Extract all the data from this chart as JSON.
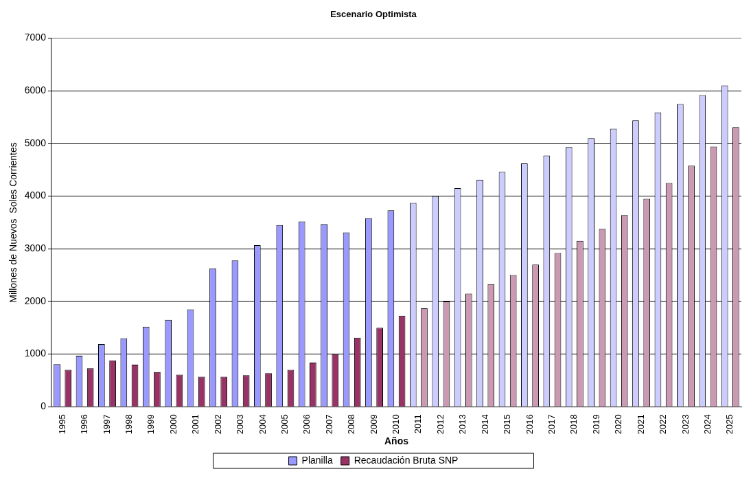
{
  "chart_data": {
    "type": "bar",
    "title": "Escenario Optimista",
    "xlabel": "Años",
    "ylabel": "Millones de Nuevos  Soles Corrientes",
    "categories": [
      "1995",
      "1996",
      "1997",
      "1998",
      "1999",
      "2000",
      "2001",
      "2002",
      "2003",
      "2004",
      "2005",
      "2006",
      "2007",
      "2008",
      "2009",
      "2010",
      "2011",
      "2012",
      "2013",
      "2014",
      "2015",
      "2016",
      "2017",
      "2018",
      "2019",
      "2020",
      "2021",
      "2022",
      "2023",
      "2024",
      "2025"
    ],
    "series": [
      {
        "name": "Planilla",
        "color": "#9999ff",
        "colors": [
          "#9999ff",
          "#9999ff",
          "#9999ff",
          "#9999ff",
          "#9999ff",
          "#9999ff",
          "#9999ff",
          "#9999ff",
          "#9999ff",
          "#9999ff",
          "#9999ff",
          "#9999ff",
          "#9999ff",
          "#9999ff",
          "#9999ff",
          "#9999ff",
          "#ccccff",
          "#ccccff",
          "#ccccff",
          "#ccccff",
          "#ccccff",
          "#ccccff",
          "#ccccff",
          "#ccccff",
          "#ccccff",
          "#ccccff",
          "#ccccff",
          "#ccccff",
          "#ccccff",
          "#ccccff",
          "#ccccff"
        ],
        "values": [
          810,
          970,
          1190,
          1300,
          1520,
          1650,
          1850,
          2630,
          2780,
          3070,
          3450,
          3520,
          3470,
          3310,
          3580,
          3730,
          3870,
          4000,
          4150,
          4310,
          4460,
          4620,
          4770,
          4930,
          5100,
          5280,
          5440,
          5590,
          5750,
          5920,
          6100
        ]
      },
      {
        "name": "Recaudación Bruta SNP",
        "color": "#993366",
        "colors": [
          "#993366",
          "#993366",
          "#993366",
          "#993366",
          "#993366",
          "#993366",
          "#993366",
          "#993366",
          "#993366",
          "#993366",
          "#993366",
          "#993366",
          "#993366",
          "#993366",
          "#993366",
          "#993366",
          "#cc99b3",
          "#cc99b3",
          "#cc99b3",
          "#cc99b3",
          "#cc99b3",
          "#cc99b3",
          "#cc99b3",
          "#cc99b3",
          "#cc99b3",
          "#cc99b3",
          "#cc99b3",
          "#cc99b3",
          "#cc99b3",
          "#cc99b3",
          "#cc99b3"
        ],
        "values": [
          700,
          730,
          880,
          800,
          660,
          610,
          570,
          570,
          600,
          640,
          700,
          840,
          1000,
          1310,
          1500,
          1730,
          1870,
          2000,
          2150,
          2330,
          2500,
          2700,
          2920,
          3150,
          3380,
          3640,
          3950,
          4250,
          4580,
          4940,
          5310
        ]
      }
    ],
    "ylim": [
      0,
      7000
    ],
    "yticks": [
      0,
      1000,
      2000,
      3000,
      4000,
      5000,
      6000,
      7000
    ],
    "grid": "y",
    "legend": "bottom"
  }
}
